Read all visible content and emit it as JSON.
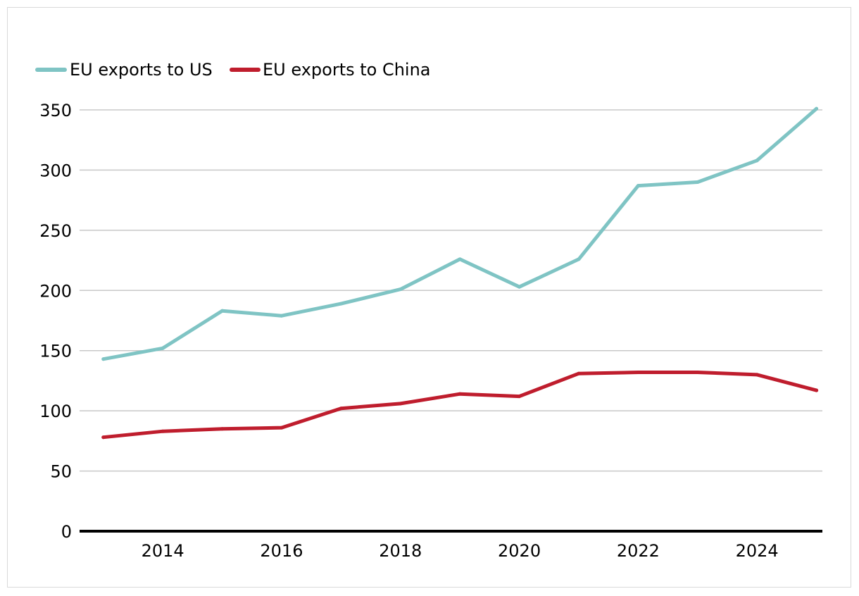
{
  "chart_data": {
    "type": "line",
    "title": "",
    "xlabel": "",
    "ylabel": "",
    "x": [
      2013,
      2014,
      2015,
      2016,
      2017,
      2018,
      2019,
      2020,
      2021,
      2022,
      2023,
      2024,
      2025
    ],
    "xlim": [
      2012.6,
      2025.1
    ],
    "x_ticks": [
      2014,
      2016,
      2018,
      2020,
      2022,
      2024
    ],
    "x_tick_labels": [
      "2014",
      "2016",
      "2018",
      "2020",
      "2022",
      "2024"
    ],
    "ylim": [
      0,
      350
    ],
    "y_ticks": [
      0,
      50,
      100,
      150,
      200,
      250,
      300,
      350
    ],
    "y_tick_labels": [
      "0",
      "50",
      "100",
      "150",
      "200",
      "250",
      "300",
      "350"
    ],
    "grid": true,
    "legend_position": "top-left",
    "series": [
      {
        "name": "EU exports to US",
        "color": "#7fc4c4",
        "values": [
          143,
          152,
          183,
          179,
          189,
          201,
          226,
          203,
          226,
          287,
          290,
          308,
          351
        ]
      },
      {
        "name": "EU exports to China",
        "color": "#bf1d2d",
        "values": [
          78,
          83,
          85,
          86,
          102,
          106,
          114,
          112,
          131,
          132,
          132,
          130,
          117
        ]
      }
    ]
  },
  "style": {
    "grid_color": "#c8c8c8",
    "axis_color": "#000000",
    "frame_color": "#d9d9d9"
  }
}
